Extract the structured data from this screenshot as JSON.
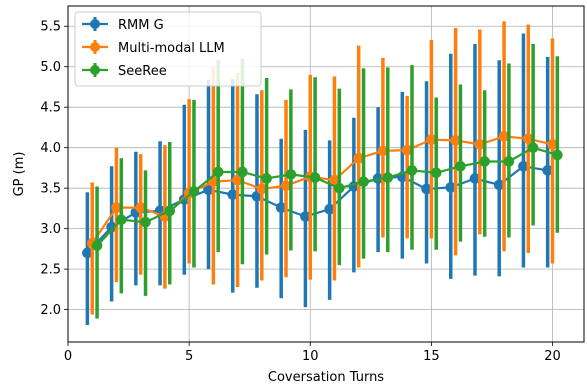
{
  "chart_data": {
    "type": "line",
    "xlabel": "Coversation Turns",
    "ylabel": "GP (m)",
    "xlim": [
      0,
      21.3
    ],
    "ylim": [
      1.6,
      5.75
    ],
    "xticks": [
      0,
      5,
      10,
      15,
      20
    ],
    "yticks": [
      2.0,
      2.5,
      3.0,
      3.5,
      4.0,
      4.5,
      5.0,
      5.5
    ],
    "grid": true,
    "legend_position": "top-left",
    "x": [
      1,
      2,
      3,
      4,
      5,
      6,
      7,
      8,
      9,
      10,
      11,
      12,
      13,
      14,
      15,
      16,
      17,
      18,
      19,
      20
    ],
    "series": [
      {
        "name": "RMM G",
        "color": "#1f77b4",
        "values": [
          2.7,
          3.02,
          3.2,
          3.22,
          3.36,
          3.48,
          3.42,
          3.4,
          3.26,
          3.15,
          3.24,
          3.52,
          3.62,
          3.64,
          3.49,
          3.51,
          3.62,
          3.54,
          3.77,
          3.72
        ],
        "lower": [
          1.81,
          2.1,
          2.3,
          2.3,
          2.43,
          2.5,
          2.21,
          2.27,
          2.14,
          2.03,
          2.12,
          2.46,
          2.71,
          2.63,
          2.57,
          2.38,
          2.42,
          2.41,
          2.52,
          2.52
        ],
        "upper": [
          3.45,
          3.77,
          3.95,
          4.08,
          4.53,
          4.84,
          4.85,
          4.66,
          4.11,
          4.22,
          4.09,
          4.37,
          4.5,
          4.69,
          4.82,
          5.16,
          5.28,
          5.08,
          5.41,
          5.12
        ]
      },
      {
        "name": "Multi-modal LLM",
        "color": "#ff7f0e",
        "values": [
          2.82,
          3.26,
          3.26,
          3.15,
          3.44,
          3.58,
          3.6,
          3.49,
          3.53,
          3.64,
          3.6,
          3.87,
          3.96,
          3.97,
          4.1,
          4.09,
          4.04,
          4.14,
          4.11,
          4.04
        ],
        "lower": [
          1.94,
          2.34,
          2.43,
          2.26,
          2.57,
          2.31,
          2.28,
          2.36,
          2.4,
          2.37,
          2.36,
          2.52,
          2.89,
          2.88,
          2.88,
          2.67,
          2.93,
          2.72,
          2.7,
          2.57
        ],
        "upper": [
          3.57,
          4.0,
          3.92,
          4.03,
          4.6,
          4.99,
          4.92,
          4.71,
          4.59,
          4.9,
          4.88,
          5.26,
          5.11,
          4.64,
          5.33,
          5.48,
          5.46,
          5.56,
          5.52,
          5.35
        ]
      },
      {
        "name": "SeeRee",
        "color": "#2ca02c",
        "values": [
          2.79,
          3.11,
          3.08,
          3.22,
          3.46,
          3.7,
          3.7,
          3.62,
          3.67,
          3.63,
          3.5,
          3.58,
          3.63,
          3.72,
          3.69,
          3.77,
          3.83,
          3.83,
          4.0,
          3.91
        ],
        "lower": [
          1.89,
          2.2,
          2.17,
          2.31,
          2.52,
          2.71,
          2.56,
          2.68,
          2.73,
          2.72,
          2.55,
          2.63,
          2.71,
          2.74,
          2.74,
          2.84,
          2.9,
          2.89,
          3.04,
          2.95
        ],
        "upper": [
          3.52,
          3.87,
          3.72,
          4.07,
          4.59,
          5.08,
          5.1,
          4.86,
          4.72,
          4.87,
          4.73,
          4.98,
          4.99,
          5.02,
          4.62,
          4.78,
          4.71,
          5.04,
          5.28,
          5.13
        ]
      }
    ]
  }
}
